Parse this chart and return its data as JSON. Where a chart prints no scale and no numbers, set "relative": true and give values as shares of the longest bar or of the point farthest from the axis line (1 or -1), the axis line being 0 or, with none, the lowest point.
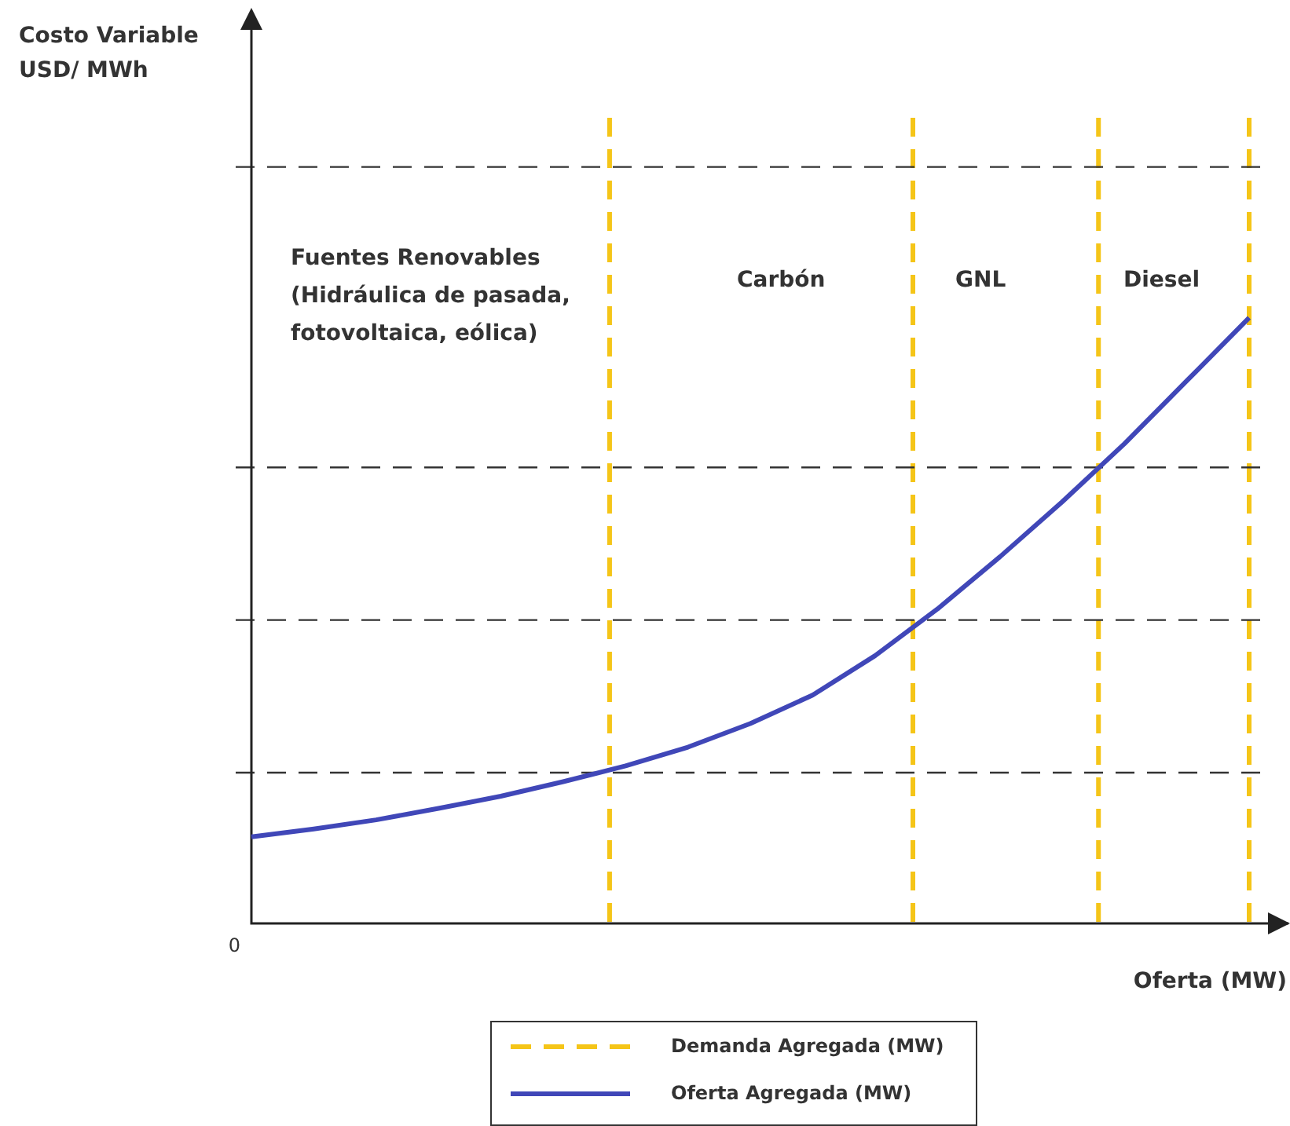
{
  "chart_data": {
    "type": "line",
    "relative": true,
    "xlabel": "Oferta (MW)",
    "legend": "bottom",
    "categories": [
      null,
      null,
      null,
      null,
      null,
      null,
      null,
      null,
      null,
      null,
      null,
      null,
      null,
      null,
      null,
      null,
      null
    ],
    "series": [
      {
        "name": "Demanda Agregada (MW)",
        "color": "#f5c518",
        "line_style": "dashed",
        "values": [
          null,
          null,
          null,
          null,
          null,
          null,
          null,
          null,
          null,
          null,
          null,
          null,
          null,
          null,
          null,
          null,
          null
        ]
      },
      {
        "name": "Oferta Agregada (MW)",
        "color": "#4047b8",
        "line_style": "solid",
        "values": [
          0.143,
          0.156,
          0.171,
          0.19,
          0.21,
          0.234,
          0.26,
          0.291,
          0.33,
          0.377,
          0.442,
          0.519,
          0.605,
          0.696,
          0.792,
          0.896,
          1
        ]
      }
    ],
    "ref_lines": [
      {
        "axis": "y",
        "value": 0.249,
        "color": "#333333",
        "line_style": "dashed"
      },
      {
        "axis": "y",
        "value": 0.501,
        "color": "#333333",
        "line_style": "dashed"
      },
      {
        "axis": "y",
        "value": 0.753,
        "color": "#333333",
        "line_style": "dashed"
      },
      {
        "axis": "y",
        "value": 1.249,
        "color": "#333333",
        "line_style": "dashed"
      }
    ],
    "annotations": [
      "Costo Variable\nUSD/ MWh",
      "0",
      "Fuentes Renovables\n(Hidráulica de pasada,\nfotovoltaica, eólica)",
      "Carbón",
      "GNL",
      "Diesel"
    ]
  }
}
